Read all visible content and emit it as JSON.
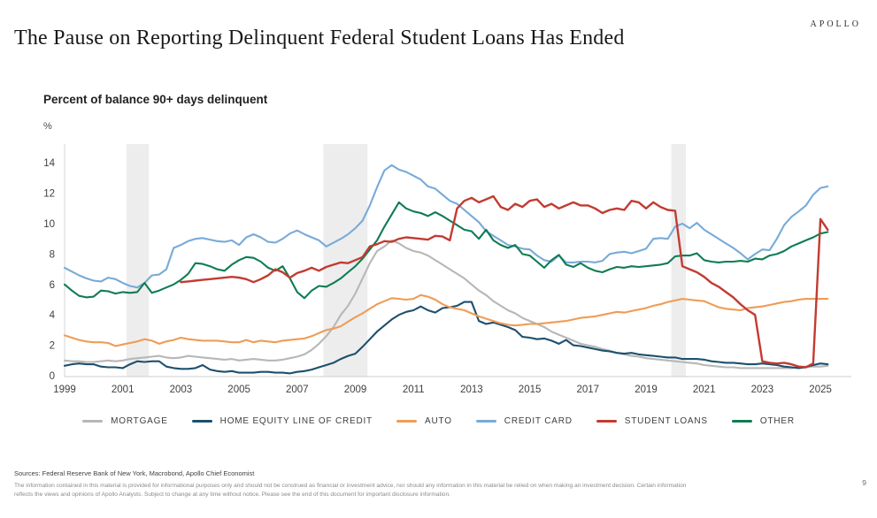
{
  "header": {
    "brand": "APOLLO",
    "title": "The Pause on Reporting Delinquent Federal Student Loans Has Ended",
    "subtitle": "Percent of balance 90+ days delinquent",
    "axis_unit": "%"
  },
  "footer": {
    "sources": "Sources: Federal Reserve Bank of New York, Macrobond, Apollo Chief Economist",
    "disclaimer": "The information contained in this material is provided for informational purposes only and should not be construed as financial or investment advice, nor should any information in this material be relied on when making an investment decision. Certain information reflects the views and opinions of Apollo Analysts. Subject to change at any time without notice. Please see the end of this document for important disclosure information.",
    "page_number": "9"
  },
  "chart_data": {
    "type": "line",
    "title": "Percent of balance 90+ days delinquent",
    "ylabel": "%",
    "ylim": [
      0,
      15.2
    ],
    "y_ticks": [
      0,
      2,
      4,
      6,
      8,
      10,
      12,
      14
    ],
    "x_ticks": [
      1999,
      2001,
      2003,
      2005,
      2007,
      2009,
      2011,
      2013,
      2015,
      2017,
      2019,
      2021,
      2023,
      2025
    ],
    "x_step": 0.25,
    "grid": false,
    "legend_position": "bottom-center",
    "recession_bands": [
      [
        2001.13,
        2001.9
      ],
      [
        2007.9,
        2009.42
      ],
      [
        2019.87,
        2020.37
      ]
    ],
    "band_color": "#ededed",
    "axis_color": "#d6d6d6",
    "tick_text_color": "#3f3f3f",
    "series": [
      {
        "name": "MORTGAGE",
        "color": "#b7b7b7",
        "start": 1999.0,
        "values": [
          1.0,
          0.95,
          0.95,
          0.9,
          0.9,
          0.95,
          1.0,
          0.95,
          1.0,
          1.1,
          1.15,
          1.2,
          1.25,
          1.3,
          1.2,
          1.15,
          1.2,
          1.3,
          1.25,
          1.2,
          1.15,
          1.1,
          1.05,
          1.1,
          1.0,
          1.05,
          1.1,
          1.05,
          1.0,
          1.0,
          1.05,
          1.15,
          1.25,
          1.4,
          1.7,
          2.1,
          2.6,
          3.2,
          4.0,
          4.6,
          5.4,
          6.4,
          7.4,
          8.2,
          8.5,
          8.9,
          8.7,
          8.4,
          8.2,
          8.1,
          7.9,
          7.6,
          7.3,
          7.0,
          6.7,
          6.4,
          6.0,
          5.6,
          5.3,
          4.9,
          4.6,
          4.3,
          4.1,
          3.8,
          3.6,
          3.4,
          3.2,
          2.9,
          2.7,
          2.5,
          2.3,
          2.1,
          2.0,
          1.9,
          1.75,
          1.65,
          1.5,
          1.4,
          1.3,
          1.25,
          1.15,
          1.1,
          1.05,
          1.0,
          0.95,
          0.9,
          0.85,
          0.8,
          0.7,
          0.65,
          0.6,
          0.55,
          0.55,
          0.5,
          0.5,
          0.5,
          0.5,
          0.5,
          0.5,
          0.5,
          0.5,
          0.55,
          0.6,
          0.6,
          0.6,
          0.65
        ]
      },
      {
        "name": "HOME EQUITY LINE OF CREDIT",
        "color": "#1d4f6e",
        "start": 1999.0,
        "values": [
          0.65,
          0.75,
          0.8,
          0.75,
          0.75,
          0.6,
          0.55,
          0.55,
          0.5,
          0.75,
          0.95,
          0.9,
          0.95,
          0.95,
          0.6,
          0.5,
          0.45,
          0.45,
          0.5,
          0.7,
          0.4,
          0.3,
          0.25,
          0.3,
          0.2,
          0.2,
          0.2,
          0.25,
          0.25,
          0.2,
          0.2,
          0.15,
          0.25,
          0.3,
          0.4,
          0.55,
          0.7,
          0.85,
          1.1,
          1.3,
          1.45,
          1.9,
          2.4,
          2.9,
          3.3,
          3.7,
          4.0,
          4.2,
          4.3,
          4.55,
          4.3,
          4.15,
          4.45,
          4.5,
          4.6,
          4.85,
          4.85,
          3.6,
          3.4,
          3.5,
          3.35,
          3.2,
          3.0,
          2.55,
          2.5,
          2.4,
          2.45,
          2.3,
          2.1,
          2.35,
          2.0,
          1.95,
          1.85,
          1.75,
          1.65,
          1.6,
          1.5,
          1.45,
          1.5,
          1.4,
          1.35,
          1.3,
          1.25,
          1.2,
          1.2,
          1.1,
          1.1,
          1.1,
          1.05,
          0.95,
          0.9,
          0.85,
          0.85,
          0.8,
          0.75,
          0.75,
          0.8,
          0.75,
          0.7,
          0.6,
          0.55,
          0.5,
          0.55,
          0.7,
          0.8,
          0.75
        ]
      },
      {
        "name": "AUTO",
        "color": "#ef9c55",
        "start": 1999.0,
        "values": [
          2.65,
          2.5,
          2.35,
          2.25,
          2.2,
          2.2,
          2.15,
          1.95,
          2.05,
          2.15,
          2.25,
          2.4,
          2.3,
          2.1,
          2.25,
          2.35,
          2.5,
          2.4,
          2.35,
          2.3,
          2.3,
          2.3,
          2.25,
          2.2,
          2.2,
          2.35,
          2.2,
          2.3,
          2.25,
          2.2,
          2.3,
          2.35,
          2.4,
          2.45,
          2.6,
          2.8,
          3.0,
          3.1,
          3.25,
          3.55,
          3.85,
          4.1,
          4.4,
          4.7,
          4.9,
          5.1,
          5.05,
          5.0,
          5.05,
          5.3,
          5.2,
          5.0,
          4.7,
          4.5,
          4.4,
          4.3,
          4.1,
          3.9,
          3.75,
          3.6,
          3.45,
          3.35,
          3.3,
          3.35,
          3.4,
          3.4,
          3.45,
          3.5,
          3.55,
          3.6,
          3.7,
          3.8,
          3.85,
          3.9,
          4.0,
          4.1,
          4.2,
          4.15,
          4.25,
          4.35,
          4.45,
          4.6,
          4.7,
          4.85,
          4.95,
          5.05,
          5.0,
          4.95,
          4.9,
          4.7,
          4.5,
          4.4,
          4.35,
          4.3,
          4.45,
          4.5,
          4.55,
          4.65,
          4.75,
          4.85,
          4.9,
          5.0,
          5.05,
          5.05,
          5.05,
          5.05
        ]
      },
      {
        "name": "CREDIT CARD",
        "color": "#78aad8",
        "start": 1999.0,
        "values": [
          7.1,
          6.85,
          6.6,
          6.4,
          6.25,
          6.2,
          6.45,
          6.35,
          6.1,
          5.9,
          5.8,
          6.1,
          6.6,
          6.65,
          7.0,
          8.4,
          8.6,
          8.85,
          9.0,
          9.05,
          8.95,
          8.85,
          8.8,
          8.9,
          8.6,
          9.1,
          9.3,
          9.1,
          8.8,
          8.75,
          9.0,
          9.35,
          9.55,
          9.3,
          9.1,
          8.9,
          8.5,
          8.75,
          9.0,
          9.3,
          9.7,
          10.2,
          11.2,
          12.4,
          13.5,
          13.85,
          13.55,
          13.4,
          13.15,
          12.9,
          12.45,
          12.3,
          11.9,
          11.5,
          11.3,
          10.9,
          10.5,
          10.1,
          9.5,
          9.2,
          8.9,
          8.6,
          8.5,
          8.35,
          8.3,
          7.9,
          7.6,
          7.5,
          7.9,
          7.45,
          7.45,
          7.5,
          7.5,
          7.45,
          7.55,
          8.0,
          8.1,
          8.15,
          8.05,
          8.2,
          8.35,
          9.0,
          9.05,
          9.0,
          9.8,
          10.0,
          9.7,
          10.05,
          9.6,
          9.3,
          9.0,
          8.7,
          8.4,
          8.05,
          7.65,
          8.0,
          8.3,
          8.25,
          9.0,
          9.9,
          10.45,
          10.8,
          11.2,
          11.9,
          12.35,
          12.45
        ]
      },
      {
        "name": "STUDENT LOANS",
        "color": "#c23b32",
        "start": 2003.0,
        "values": [
          6.15,
          6.2,
          6.25,
          6.3,
          6.35,
          6.4,
          6.45,
          6.5,
          6.45,
          6.35,
          6.15,
          6.35,
          6.6,
          7.0,
          6.8,
          6.45,
          6.75,
          6.9,
          7.1,
          6.9,
          7.15,
          7.3,
          7.45,
          7.4,
          7.6,
          7.8,
          8.5,
          8.65,
          8.85,
          8.8,
          9.0,
          9.1,
          9.05,
          9.0,
          8.95,
          9.2,
          9.15,
          8.9,
          11.0,
          11.5,
          11.7,
          11.4,
          11.6,
          11.8,
          11.1,
          10.9,
          11.3,
          11.1,
          11.5,
          11.6,
          11.1,
          11.3,
          11.0,
          11.2,
          11.4,
          11.2,
          11.2,
          11.0,
          10.7,
          10.9,
          11.0,
          10.9,
          11.5,
          11.4,
          11.0,
          11.4,
          11.1,
          10.9,
          10.85,
          7.2,
          7.0,
          6.8,
          6.5,
          6.1,
          5.85,
          5.5,
          5.15,
          4.7,
          4.3,
          4.0,
          0.95,
          0.85,
          0.8,
          0.85,
          0.75,
          0.6,
          0.55,
          0.8,
          10.3,
          9.6
        ]
      },
      {
        "name": "OTHER",
        "color": "#0f7c52",
        "start": 1999.0,
        "values": [
          6.0,
          5.6,
          5.25,
          5.15,
          5.2,
          5.6,
          5.55,
          5.4,
          5.5,
          5.45,
          5.5,
          6.1,
          5.45,
          5.6,
          5.8,
          6.0,
          6.3,
          6.7,
          7.4,
          7.35,
          7.2,
          7.0,
          6.9,
          7.3,
          7.6,
          7.8,
          7.75,
          7.5,
          7.1,
          6.9,
          7.2,
          6.4,
          5.5,
          5.1,
          5.6,
          5.9,
          5.85,
          6.1,
          6.4,
          6.8,
          7.2,
          7.7,
          8.3,
          8.9,
          9.8,
          10.6,
          11.4,
          11.0,
          10.8,
          10.7,
          10.5,
          10.75,
          10.5,
          10.2,
          9.9,
          9.6,
          9.5,
          9.0,
          9.6,
          8.9,
          8.6,
          8.4,
          8.6,
          8.0,
          7.9,
          7.5,
          7.1,
          7.6,
          7.95,
          7.3,
          7.15,
          7.4,
          7.1,
          6.9,
          6.8,
          7.0,
          7.15,
          7.1,
          7.2,
          7.15,
          7.2,
          7.25,
          7.3,
          7.4,
          7.85,
          7.9,
          7.9,
          8.05,
          7.6,
          7.5,
          7.45,
          7.5,
          7.5,
          7.55,
          7.5,
          7.7,
          7.65,
          7.9,
          8.0,
          8.2,
          8.5,
          8.7,
          8.9,
          9.1,
          9.35,
          9.45
        ]
      }
    ]
  }
}
